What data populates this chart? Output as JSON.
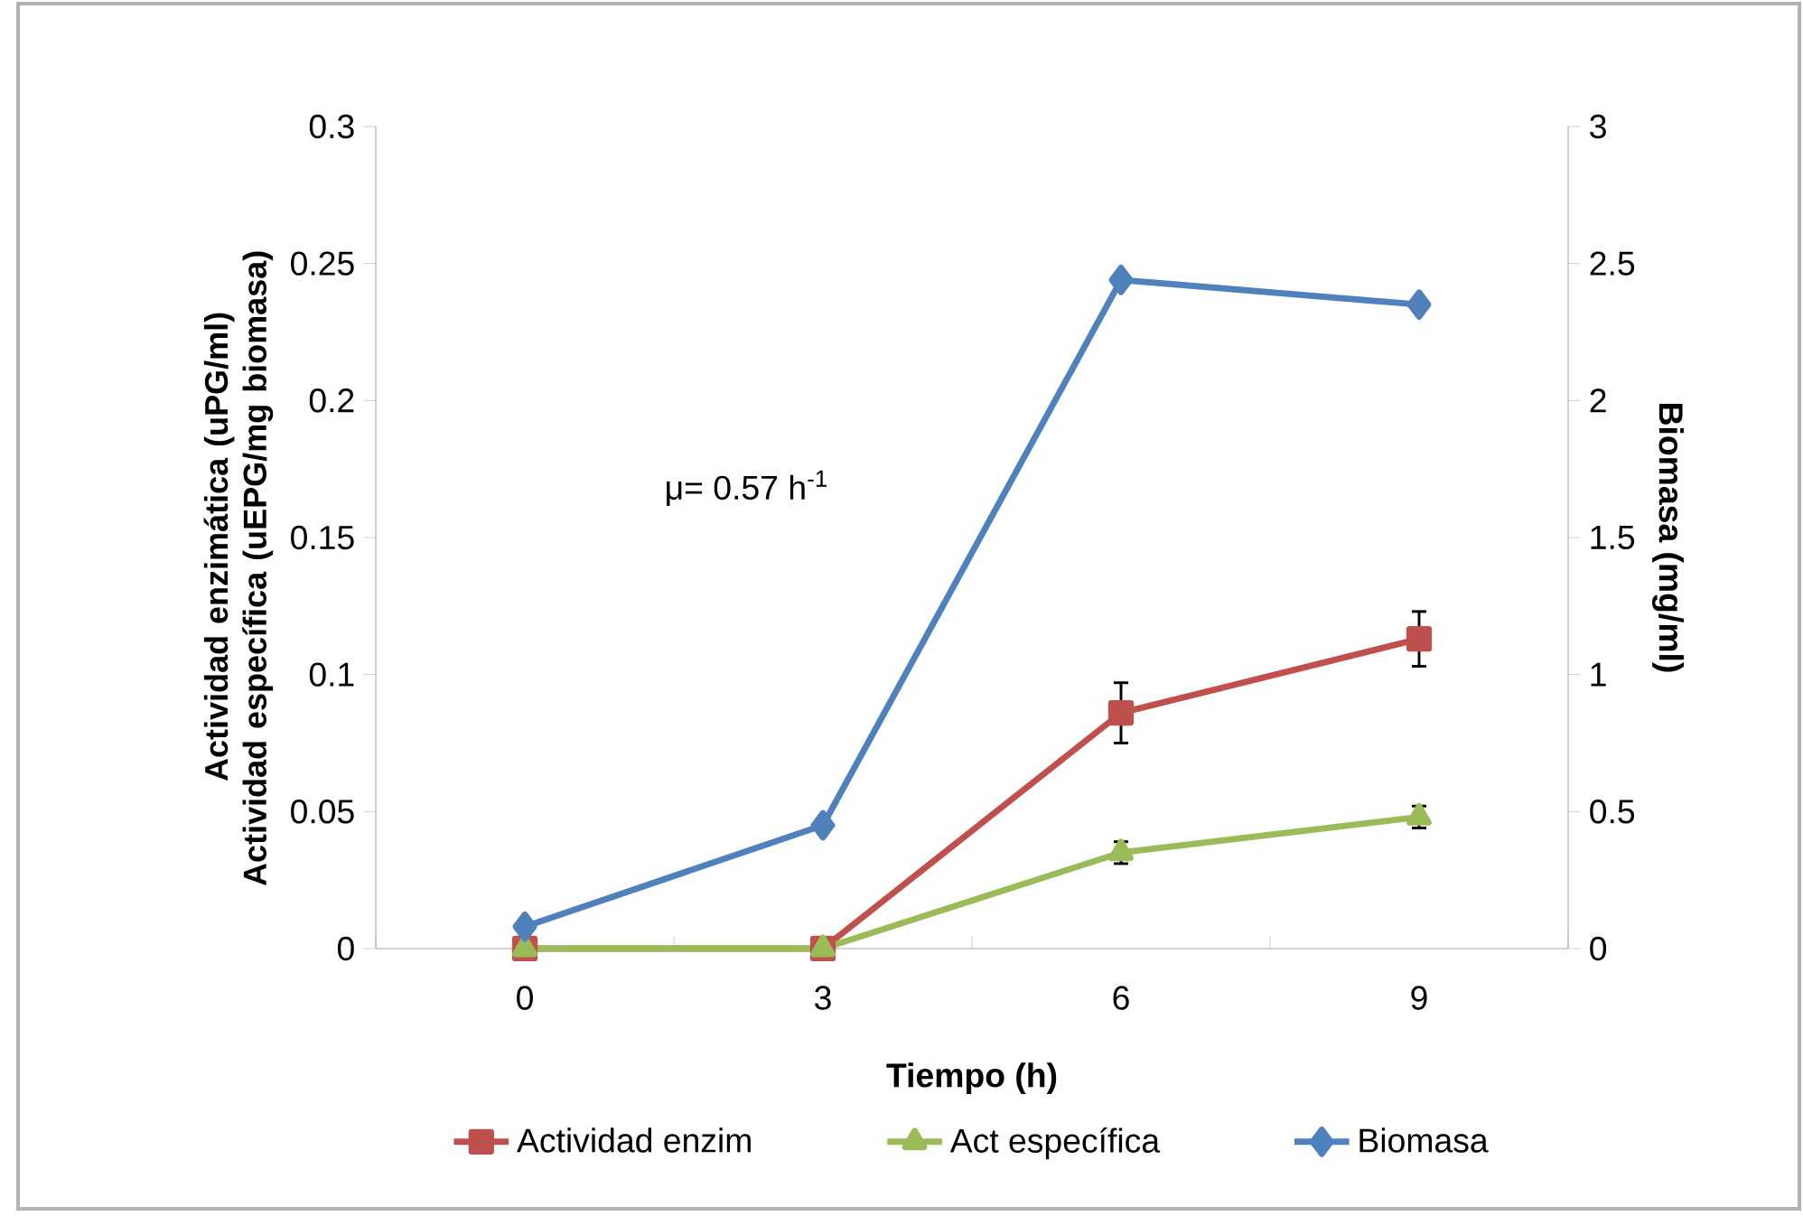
{
  "chart_data": {
    "type": "line",
    "xlabel": "Tiempo (h)",
    "ylabel": "Actividad enzimática  (uPG/ml) Actividad específica (uEPG/mg biomasa)",
    "y2label": "Biomasa (mg/ml)",
    "categories": [
      "0",
      "3",
      "6",
      "9"
    ],
    "ylim": [
      0,
      0.3
    ],
    "yticks": [
      0,
      0.05,
      0.1,
      0.15,
      0.2,
      0.25,
      0.3
    ],
    "y2lim": [
      0,
      3
    ],
    "y2ticks": [
      0,
      0.5,
      1,
      1.5,
      2,
      2.5,
      3
    ],
    "legend": "bottom",
    "grid": false,
    "line_style": "solid",
    "annotations": [
      "μ= 0.57 h$^{-1}$"
    ],
    "series": [
      {
        "name": "Actividad enzim",
        "color": "#c0504d",
        "marker": "square",
        "values": [
          0,
          0,
          0.086,
          0.113
        ],
        "errors": [
          null,
          null,
          0.011,
          0.01
        ]
      },
      {
        "name": "Act específica",
        "color": "#9bbb59",
        "marker": "triangle",
        "values": [
          0,
          0,
          0.035,
          0.048
        ],
        "errors": [
          null,
          null,
          0.004,
          0.004
        ]
      },
      {
        "name": "Biomasa",
        "color": "#4f81bd",
        "marker": "diamond",
        "axis": "y2",
        "values": [
          0.08,
          0.45,
          2.44,
          2.35
        ]
      }
    ]
  }
}
